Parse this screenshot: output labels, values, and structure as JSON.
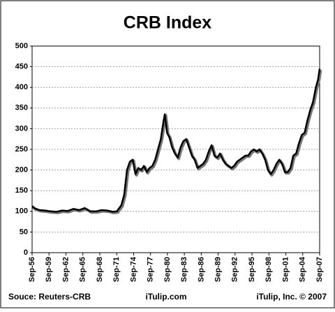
{
  "chart_data": {
    "type": "line",
    "title": "CRB Index",
    "source": "Souce: Reuters-CRB",
    "site": "iTulip.com",
    "copyright": "iTulip, Inc. © 2007",
    "x": [
      1956.7,
      1957,
      1958,
      1959,
      1960,
      1961,
      1962,
      1963,
      1964,
      1965,
      1966,
      1967,
      1968,
      1969,
      1970,
      1971,
      1971.7,
      1972.5,
      1973,
      1973.5,
      1974,
      1974.5,
      1975,
      1975.5,
      1976,
      1976.5,
      1977,
      1977.5,
      1978,
      1978.5,
      1979,
      1979.5,
      1980,
      1980.2,
      1980.6,
      1981,
      1981.5,
      1982,
      1982.5,
      1983,
      1983.5,
      1984,
      1984.5,
      1985,
      1985.5,
      1986,
      1986.5,
      1987,
      1987.5,
      1988,
      1988.5,
      1989,
      1989.5,
      1990,
      1990.5,
      1991,
      1991.5,
      1992,
      1992.5,
      1993,
      1993.5,
      1994,
      1994.5,
      1995,
      1995.5,
      1996,
      1996.5,
      1997,
      1997.5,
      1998,
      1998.5,
      1999,
      1999.5,
      2000,
      2000.5,
      2001,
      2001.5,
      2002,
      2002.5,
      2003,
      2003.5,
      2004,
      2004.5,
      2005,
      2005.5,
      2006,
      2006.5,
      2007,
      2007.4,
      2007.67
    ],
    "series": [
      {
        "name": "CRB Index",
        "color": "#000000",
        "values": [
          113,
          108,
          103,
          102,
          100,
          99,
          102,
          101,
          106,
          103,
          108,
          100,
          100,
          103,
          102,
          99,
          100,
          115,
          140,
          200,
          220,
          225,
          190,
          205,
          200,
          210,
          195,
          205,
          210,
          225,
          250,
          275,
          320,
          335,
          290,
          280,
          255,
          240,
          230,
          255,
          270,
          275,
          255,
          235,
          225,
          205,
          210,
          215,
          225,
          245,
          260,
          235,
          230,
          240,
          225,
          215,
          210,
          205,
          210,
          220,
          225,
          230,
          235,
          235,
          245,
          250,
          245,
          250,
          240,
          225,
          200,
          190,
          200,
          215,
          225,
          215,
          195,
          195,
          205,
          235,
          240,
          265,
          285,
          290,
          320,
          345,
          365,
          400,
          420,
          445
        ]
      }
    ],
    "xlim": [
      1956.67,
      2007.67
    ],
    "xticks": [
      {
        "value": 1956.67,
        "label": "Sep-56"
      },
      {
        "value": 1959.67,
        "label": "Sep-59"
      },
      {
        "value": 1962.67,
        "label": "Sep-62"
      },
      {
        "value": 1965.67,
        "label": "Sep-65"
      },
      {
        "value": 1968.67,
        "label": "Sep-68"
      },
      {
        "value": 1971.67,
        "label": "Sep-71"
      },
      {
        "value": 1974.67,
        "label": "Sep-74"
      },
      {
        "value": 1977.67,
        "label": "Sep-77"
      },
      {
        "value": 1980.67,
        "label": "Sep-80"
      },
      {
        "value": 1983.67,
        "label": "Sep-83"
      },
      {
        "value": 1986.67,
        "label": "Sep-86"
      },
      {
        "value": 1989.67,
        "label": "Sep-89"
      },
      {
        "value": 1992.67,
        "label": "Sep-92"
      },
      {
        "value": 1995.67,
        "label": "Sep-95"
      },
      {
        "value": 1998.67,
        "label": "Sep-98"
      },
      {
        "value": 2001.67,
        "label": "Sep-01"
      },
      {
        "value": 2004.67,
        "label": "Sep-04"
      },
      {
        "value": 2007.67,
        "label": "Sep-07"
      }
    ],
    "ylim": [
      0,
      500
    ],
    "yticks": [
      0,
      50,
      100,
      150,
      200,
      250,
      300,
      350,
      400,
      450,
      500
    ],
    "grid": true
  }
}
